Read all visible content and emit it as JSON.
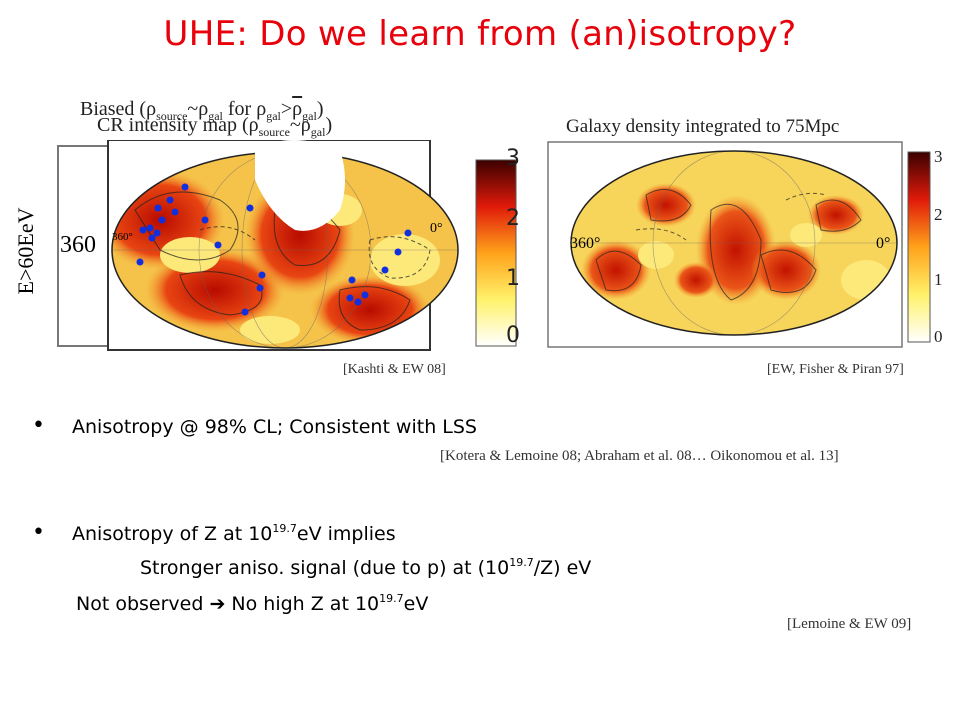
{
  "title": "UHE: Do we learn from (an)isotropy?",
  "left_map": {
    "axis_label": "E>60EeV",
    "label_biased_prefix": "Biased (ρ",
    "label_biased_sub1": "source",
    "label_biased_mid": "~ρ",
    "label_biased_sub2": "gal",
    "label_biased_for": " for ρ",
    "label_biased_sub3": "gal",
    "label_biased_gt": ">",
    "label_biased_overline": "ρ",
    "label_biased_sub4": "gal",
    "label_biased_end": ")",
    "label_cr_prefix": "CR intensity map (ρ",
    "label_cr_sub1": "source",
    "label_cr_mid": "~ρ",
    "label_cr_sub2": "gal",
    "label_cr_end": ")",
    "lon_left": "360",
    "lon_left_small": "360°",
    "lon_right": "0°",
    "colorbar_ticks": [
      "3",
      "2",
      "1",
      "0"
    ],
    "citation": "[Kashti & EW 08]",
    "marker_color": "#1030e0"
  },
  "right_map": {
    "label": "Galaxy density integrated to 75Mpc",
    "lon_left": "360°",
    "lon_right": "0°",
    "colorbar_ticks": [
      "3",
      "2",
      "1",
      "0"
    ],
    "citation": "[EW, Fisher & Piran 97]"
  },
  "bullets": [
    {
      "text": "Anisotropy @ 98% CL; Consistent with LSS",
      "citation": "[Kotera & Lemoine 08; Abraham et al. 08… Oikonomou et al. 13]"
    },
    {
      "text_pre": "Anisotropy of Z at 10",
      "sup": "19.7",
      "text_post": "eV implies"
    }
  ],
  "line2_pre": "Stronger aniso. signal (due to p) at (10",
  "line2_sup": "19.7",
  "line2_post": "/Z) eV",
  "line3_pre": "Not observed ",
  "line3_arrow": "➔",
  "line3_mid": " No high Z at 10",
  "line3_sup": "19.7",
  "line3_post": "eV",
  "citation_last": "[Lemoine & EW 09]",
  "bullet_char": "•"
}
